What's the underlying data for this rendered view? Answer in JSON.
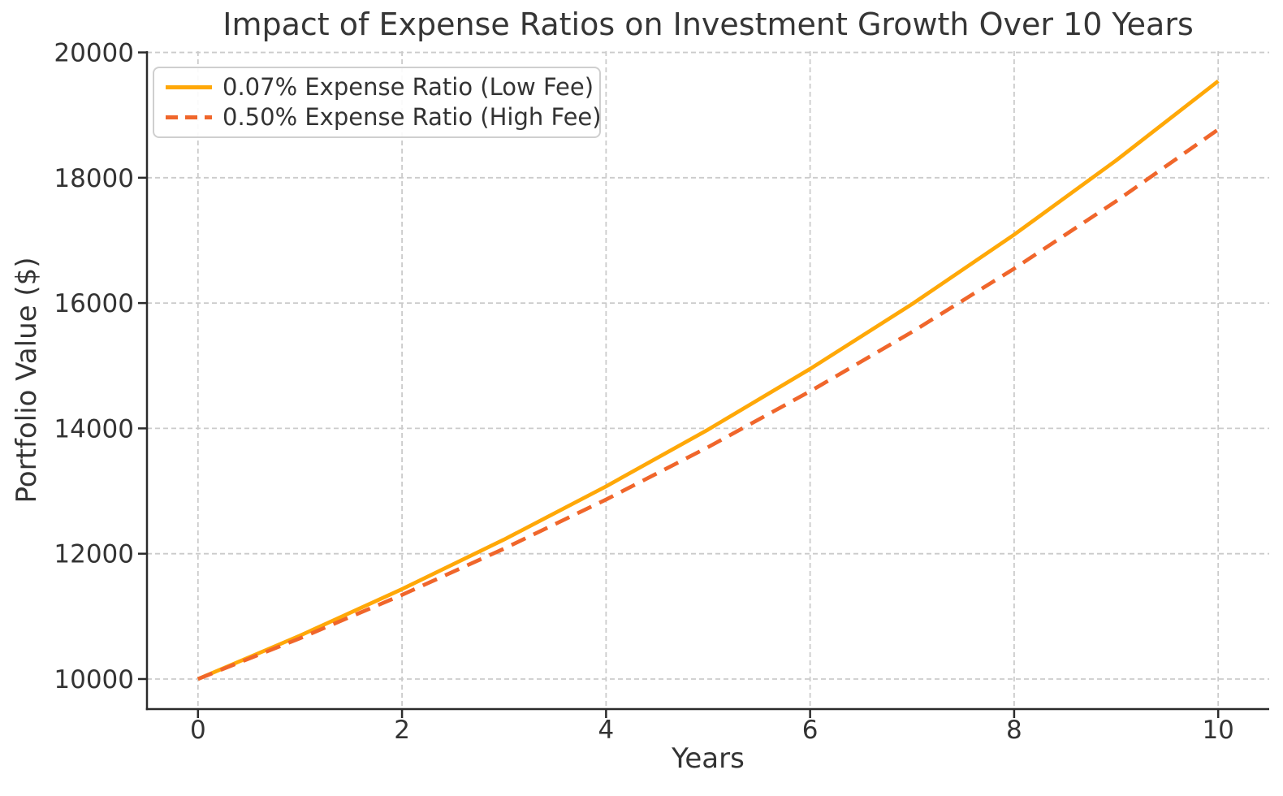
{
  "chart_data": {
    "type": "line",
    "title": "Impact of Expense Ratios on Investment Growth Over 10 Years",
    "xlabel": "Years",
    "ylabel": "Portfolio Value ($)",
    "x": [
      0,
      1,
      2,
      3,
      4,
      5,
      6,
      7,
      8,
      9,
      10
    ],
    "series": [
      {
        "key": "low-fee",
        "name": "0.07% Expense Ratio (Low Fee)",
        "style": "solid",
        "color": "#FFA807",
        "values": [
          10000,
          10693,
          11434,
          12226,
          13074,
          13980,
          14949,
          15984,
          17092,
          18277,
          19543
        ]
      },
      {
        "key": "high-fee",
        "name": "0.50% Expense Ratio (High Fee)",
        "style": "dashed",
        "color": "#F0662B",
        "values": [
          10000,
          10650,
          11342,
          12080,
          12865,
          13701,
          14591,
          15540,
          16550,
          17626,
          18771
        ]
      }
    ],
    "xlim": [
      -0.5,
      10.5
    ],
    "ylim": [
      9520,
      20020
    ],
    "x_ticks": [
      0,
      2,
      4,
      6,
      8,
      10
    ],
    "x_tick_labels": [
      "0",
      "2",
      "4",
      "6",
      "8",
      "10"
    ],
    "y_ticks": [
      10000,
      12000,
      14000,
      16000,
      18000,
      20000
    ],
    "y_tick_labels": [
      "10000",
      "12000",
      "14000",
      "16000",
      "18000",
      "20000"
    ],
    "grid": true,
    "legend_position": "upper left",
    "grid_color": "#cbcbcb",
    "spine_color": "#2b2b2b",
    "text_color": "#333333"
  }
}
